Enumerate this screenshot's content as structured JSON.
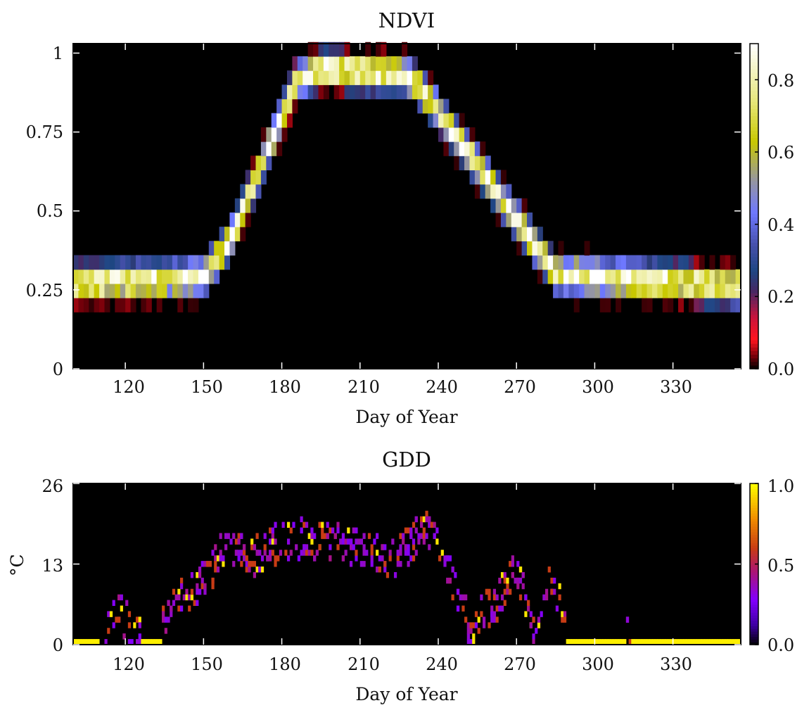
{
  "chart_data": [
    {
      "type": "heatmap",
      "title": "NDVI",
      "xlabel": "Day of Year",
      "ylabel": "",
      "xlim": [
        100,
        356
      ],
      "ylim": [
        0,
        1.03
      ],
      "xticks": [
        120,
        150,
        180,
        210,
        240,
        270,
        300,
        330
      ],
      "xtick_labels": [
        "120",
        "150",
        "180",
        "210",
        "240",
        "270",
        "300",
        "330"
      ],
      "yticks": [
        0,
        0.25,
        0.5,
        0.75,
        1.0
      ],
      "ytick_labels": [
        "0",
        "0.25",
        "0.5",
        "0.75",
        "1"
      ],
      "colormap": "gist_stern",
      "colorbar": {
        "range": [
          0,
          0.9
        ],
        "ticks": [
          0,
          0.2,
          0.4,
          0.6,
          0.8
        ],
        "tick_labels": [
          "0.0",
          "0.2",
          "0.4",
          "0.6",
          "0.8"
        ]
      },
      "trajectory": {
        "description": "density of NDVI samples per day",
        "knots": [
          [
            100,
            0.27
          ],
          [
            150,
            0.29
          ],
          [
            160,
            0.4
          ],
          [
            186,
            0.92
          ],
          [
            196,
            0.95
          ],
          [
            228,
            0.93
          ],
          [
            237,
            0.85
          ],
          [
            285,
            0.3
          ],
          [
            356,
            0.26
          ]
        ],
        "spread": 0.045,
        "peak_value": 0.9
      }
    },
    {
      "type": "heatmap",
      "title": "GDD",
      "xlabel": "Day of Year",
      "ylabel": "°C",
      "xlim": [
        100,
        356
      ],
      "ylim": [
        0,
        26
      ],
      "xticks": [
        120,
        150,
        180,
        210,
        240,
        270,
        300,
        330
      ],
      "xtick_labels": [
        "120",
        "150",
        "180",
        "210",
        "240",
        "270",
        "300",
        "330"
      ],
      "yticks": [
        0,
        13,
        26
      ],
      "ytick_labels": [
        "0",
        "13",
        "26"
      ],
      "colormap": "gnuplot",
      "colorbar": {
        "range": [
          0,
          1.0
        ],
        "ticks": [
          0,
          0.5,
          1.0
        ],
        "tick_labels": [
          "0.0",
          "0.5",
          "1.0"
        ]
      },
      "trajectory": {
        "description": "daily growing degree days",
        "knots": [
          [
            100,
            0
          ],
          [
            112,
            0
          ],
          [
            116,
            6
          ],
          [
            122,
            3
          ],
          [
            128,
            0
          ],
          [
            136,
            5
          ],
          [
            145,
            9
          ],
          [
            152,
            11
          ],
          [
            158,
            16
          ],
          [
            168,
            14
          ],
          [
            180,
            17
          ],
          [
            195,
            17
          ],
          [
            210,
            15
          ],
          [
            222,
            14
          ],
          [
            236,
            19
          ],
          [
            244,
            12
          ],
          [
            252,
            3
          ],
          [
            262,
            7
          ],
          [
            270,
            13
          ],
          [
            276,
            2
          ],
          [
            284,
            11
          ],
          [
            290,
            0
          ],
          [
            308,
            2
          ],
          [
            312,
            6
          ],
          [
            316,
            0
          ],
          [
            356,
            0
          ]
        ],
        "zero_bands": [
          [
            100,
            110
          ],
          [
            126,
            134
          ],
          [
            289,
            312
          ],
          [
            314,
            356
          ]
        ]
      }
    }
  ]
}
